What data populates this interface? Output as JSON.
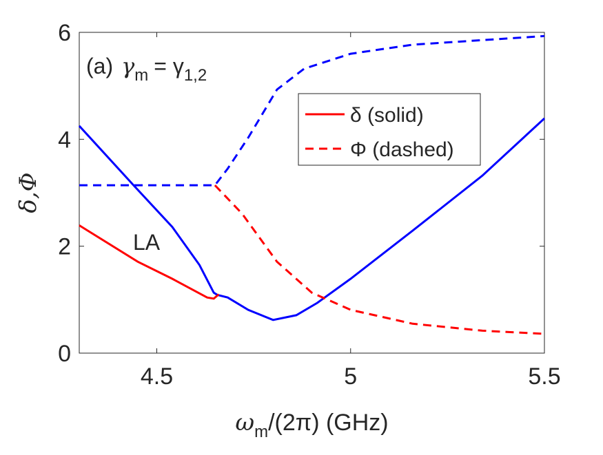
{
  "chart_data": {
    "type": "line",
    "annotation": {
      "label": "(a)",
      "symbol": "γ",
      "sub": "m",
      "rel": "= γ",
      "sub2": "1,2"
    },
    "inline_label": "LA",
    "xlabel": {
      "symbol": "ω",
      "sub": "m",
      "rest": "/(2π) (GHz)"
    },
    "ylabel": "δ,Φ",
    "xlim": [
      4.3,
      5.5
    ],
    "xticks": [
      4.5,
      5,
      5.5
    ],
    "ylim": [
      0,
      6
    ],
    "yticks": [
      0,
      2,
      4,
      6
    ],
    "series": [
      {
        "color": "#0000ff",
        "dash": false,
        "x": [
          4.3,
          4.44,
          4.54,
          4.61,
          4.647,
          4.656,
          4.683,
          4.736,
          4.8,
          4.86,
          4.914,
          5.0,
          5.16,
          5.34,
          5.5
        ],
        "values": [
          4.25,
          3.14,
          2.36,
          1.65,
          1.13,
          1.09,
          1.04,
          0.81,
          0.62,
          0.71,
          0.94,
          1.39,
          2.29,
          3.32,
          4.39
        ]
      },
      {
        "name": "δ (solid)",
        "color": "#ff0000",
        "dash": false,
        "x": [
          4.3,
          4.451,
          4.54,
          4.63,
          4.647,
          4.66
        ],
        "values": [
          2.39,
          1.71,
          1.39,
          1.04,
          1.02,
          1.1
        ]
      },
      {
        "color": "#0000ff",
        "dash": true,
        "x": [
          4.3,
          4.5,
          4.65,
          4.683,
          4.736,
          4.81,
          4.88,
          5.0,
          5.16,
          5.5
        ],
        "values": [
          3.14,
          3.14,
          3.14,
          3.45,
          4.03,
          4.93,
          5.32,
          5.6,
          5.77,
          5.93
        ]
      },
      {
        "name": "Φ (dashed)",
        "color": "#ff0000",
        "dash": true,
        "x": [
          4.65,
          4.72,
          4.81,
          4.9,
          5.0,
          5.16,
          5.34,
          5.5
        ],
        "values": [
          3.14,
          2.61,
          1.71,
          1.13,
          0.81,
          0.55,
          0.42,
          0.36
        ]
      }
    ]
  }
}
